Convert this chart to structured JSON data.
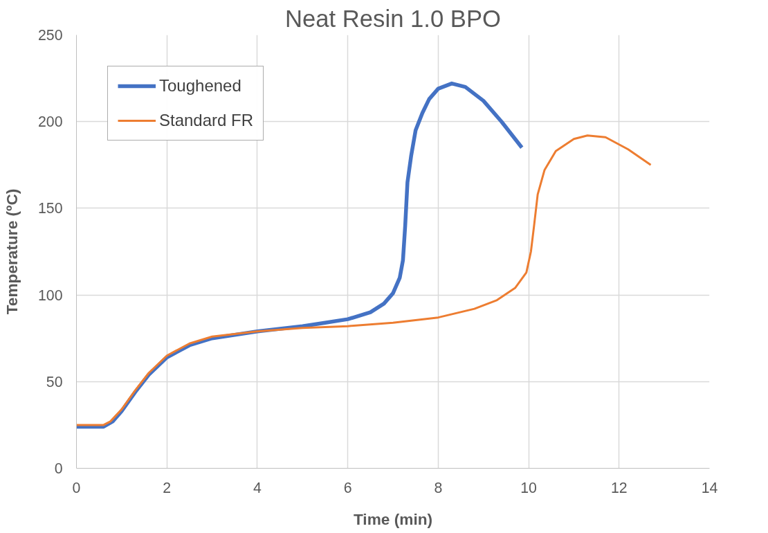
{
  "chart_data": {
    "type": "line",
    "title": "Neat Resin 1.0 BPO",
    "xlabel": "Time (min)",
    "ylabel": "Temperature (ºC)",
    "xlim": [
      0,
      14
    ],
    "xticks": [
      0,
      2,
      4,
      6,
      8,
      10,
      12,
      14
    ],
    "ylim": [
      0,
      250
    ],
    "yticks": [
      0,
      50,
      100,
      150,
      200,
      250
    ],
    "grid": true,
    "legend": "top left",
    "marker": "none",
    "line_style": "solid",
    "series": [
      {
        "name": "Toughened",
        "color": "#4472c4",
        "x": [
          0,
          0.6,
          0.8,
          1,
          1.3,
          1.6,
          2,
          2.5,
          3,
          4,
          5,
          5.5,
          6,
          6.5,
          6.8,
          7,
          7.15,
          7.22,
          7.27,
          7.32,
          7.4,
          7.5,
          7.65,
          7.8,
          8,
          8.3,
          8.6,
          9,
          9.4,
          9.85
        ],
        "values": [
          24,
          24,
          27,
          33,
          44,
          54,
          64,
          71,
          75,
          79,
          82,
          84,
          86,
          90,
          95,
          101,
          110,
          120,
          140,
          165,
          180,
          195,
          205,
          213,
          219,
          222,
          220,
          212,
          200,
          185
        ]
      },
      {
        "name": "Standard FR",
        "color": "#ed7d31",
        "x": [
          0,
          0.6,
          0.75,
          1,
          1.3,
          1.6,
          2,
          2.5,
          3,
          4,
          5,
          6,
          7,
          8,
          8.8,
          9.3,
          9.7,
          9.95,
          10.05,
          10.12,
          10.2,
          10.35,
          10.6,
          11,
          11.3,
          11.7,
          12.2,
          12.7
        ],
        "values": [
          25,
          25,
          27,
          34,
          45,
          55,
          65,
          72,
          76,
          79,
          81,
          82,
          84,
          87,
          92,
          97,
          104,
          113,
          125,
          140,
          158,
          172,
          183,
          190,
          192,
          191,
          184,
          175
        ]
      }
    ]
  }
}
